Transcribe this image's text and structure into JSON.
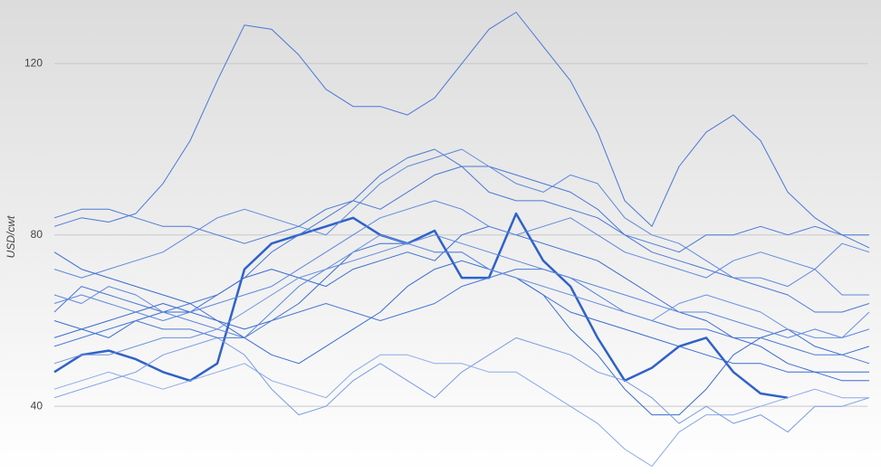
{
  "chart_data": {
    "type": "line",
    "y_label": "USD/cwt",
    "x": [
      0,
      1,
      2,
      3,
      4,
      5,
      6,
      7,
      8,
      9,
      10,
      11,
      12,
      13,
      14,
      15,
      16,
      17,
      18,
      19,
      20,
      21,
      22,
      23,
      24,
      25,
      26,
      27,
      28,
      29,
      30
    ],
    "xlim": [
      0,
      30
    ],
    "ylim": [
      24.2,
      134
    ],
    "yticks": [
      40,
      80,
      120
    ],
    "grid": true,
    "series": [
      {
        "color": "#4a78d6",
        "values": [
          82,
          84,
          83,
          85,
          92,
          102,
          116,
          129,
          128,
          122,
          114,
          110,
          110,
          108,
          112,
          120,
          128,
          132,
          124,
          116,
          104,
          88,
          82,
          96,
          104,
          108,
          102,
          90,
          84,
          80,
          77
        ]
      },
      {
        "color": "#2f62c8",
        "line_width": 2.5,
        "values": [
          48,
          52,
          53,
          51,
          48,
          46,
          50,
          72,
          78,
          80,
          82,
          84,
          80,
          78,
          81,
          70,
          70,
          85,
          74,
          68,
          56,
          46,
          49,
          54,
          56,
          48,
          43,
          42,
          null,
          null,
          null
        ]
      },
      {
        "color": "#4a78d6",
        "values": [
          62,
          68,
          66,
          64,
          62,
          64,
          66,
          70,
          76,
          80,
          84,
          88,
          94,
          98,
          100,
          96,
          96,
          94,
          92,
          90,
          86,
          80,
          76,
          74,
          72,
          70,
          68,
          66,
          62,
          62,
          64
        ]
      },
      {
        "color": "#5d88dd",
        "values": [
          72,
          70,
          72,
          74,
          76,
          80,
          84,
          86,
          84,
          82,
          80,
          86,
          92,
          96,
          98,
          100,
          96,
          92,
          90,
          94,
          92,
          84,
          80,
          78,
          74,
          70,
          70,
          68,
          72,
          66,
          66
        ]
      },
      {
        "color": "#4a78d6",
        "values": [
          84,
          86,
          86,
          84,
          82,
          82,
          80,
          78,
          80,
          82,
          86,
          88,
          86,
          90,
          94,
          96,
          90,
          88,
          88,
          86,
          84,
          80,
          78,
          76,
          80,
          80,
          82,
          80,
          82,
          80,
          80
        ]
      },
      {
        "color": "#3a6ccf",
        "values": [
          60,
          58,
          56,
          60,
          62,
          62,
          66,
          70,
          72,
          70,
          68,
          72,
          74,
          76,
          74,
          80,
          82,
          80,
          78,
          76,
          74,
          70,
          66,
          62,
          60,
          56,
          54,
          50,
          48,
          46,
          46
        ]
      },
      {
        "color": "#3a6ccf",
        "values": [
          56,
          58,
          60,
          62,
          64,
          62,
          60,
          58,
          60,
          64,
          70,
          76,
          78,
          78,
          76,
          76,
          72,
          70,
          66,
          58,
          52,
          44,
          38,
          38,
          44,
          52,
          56,
          58,
          54,
          52,
          54
        ]
      },
      {
        "color": "#8aa9e8",
        "values": [
          44,
          46,
          48,
          46,
          44,
          46,
          48,
          50,
          46,
          44,
          42,
          48,
          52,
          52,
          50,
          50,
          48,
          48,
          44,
          40,
          36,
          30,
          26,
          34,
          38,
          38,
          40,
          42,
          44,
          42,
          42
        ]
      },
      {
        "color": "#7a9ce4",
        "values": [
          42,
          44,
          46,
          48,
          52,
          54,
          56,
          52,
          44,
          38,
          40,
          46,
          50,
          46,
          42,
          48,
          52,
          56,
          54,
          52,
          48,
          46,
          42,
          36,
          40,
          36,
          38,
          34,
          40,
          40,
          42
        ]
      },
      {
        "color": "#4a78d6",
        "values": [
          54,
          56,
          58,
          60,
          58,
          58,
          56,
          56,
          60,
          62,
          64,
          62,
          60,
          62,
          64,
          68,
          70,
          72,
          72,
          70,
          66,
          62,
          60,
          58,
          58,
          56,
          56,
          54,
          52,
          52,
          50
        ]
      },
      {
        "color": "#5d88dd",
        "values": [
          66,
          64,
          68,
          66,
          62,
          60,
          58,
          56,
          62,
          68,
          72,
          74,
          76,
          78,
          80,
          78,
          76,
          74,
          72,
          70,
          68,
          66,
          64,
          62,
          62,
          60,
          58,
          56,
          58,
          56,
          58
        ]
      },
      {
        "color": "#3a6ccf",
        "values": [
          76,
          72,
          70,
          68,
          66,
          64,
          60,
          56,
          52,
          50,
          54,
          58,
          62,
          68,
          72,
          74,
          72,
          70,
          66,
          62,
          60,
          58,
          56,
          54,
          52,
          50,
          50,
          48,
          48,
          48,
          48
        ]
      },
      {
        "color": "#6b92e0",
        "values": [
          50,
          52,
          52,
          54,
          56,
          56,
          58,
          62,
          66,
          70,
          72,
          76,
          80,
          78,
          76,
          76,
          72,
          70,
          68,
          66,
          64,
          62,
          60,
          64,
          66,
          64,
          62,
          58,
          56,
          56,
          62
        ]
      },
      {
        "color": "#5d88dd",
        "values": [
          64,
          66,
          64,
          62,
          60,
          62,
          64,
          66,
          68,
          72,
          76,
          80,
          84,
          86,
          88,
          86,
          82,
          80,
          82,
          84,
          80,
          76,
          74,
          72,
          70,
          74,
          76,
          74,
          72,
          78,
          76
        ]
      }
    ]
  }
}
